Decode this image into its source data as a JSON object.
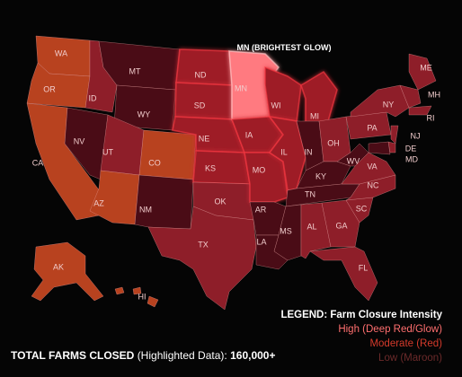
{
  "callout": "MN (BRIGHTEST GLOW)",
  "states": [
    "WA",
    "OR",
    "CA",
    "NV",
    "ID",
    "MT",
    "WY",
    "UT",
    "AZ",
    "CO",
    "NM",
    "ND",
    "SD",
    "NE",
    "KS",
    "OK",
    "TX",
    "MN",
    "IA",
    "MO",
    "AR",
    "LA",
    "WI",
    "IL",
    "MI",
    "IN",
    "OH",
    "KY",
    "TN",
    "MS",
    "AL",
    "GA",
    "FL",
    "SC",
    "NC",
    "VA",
    "WV",
    "PA",
    "NY",
    "ME",
    "MH",
    "RI",
    "NJ",
    "DE",
    "MD",
    "AK",
    "HI"
  ],
  "legend": {
    "title": "LEGEND: Farm Closure Intensity",
    "items": [
      "High (Deep Red/Glow)",
      "Moderate (Red)",
      "Low (Maroon)"
    ]
  },
  "footer": {
    "label": "TOTAL FARMS CLOSED",
    "note": "(Highlighted Data):",
    "value": "160,000+"
  }
}
